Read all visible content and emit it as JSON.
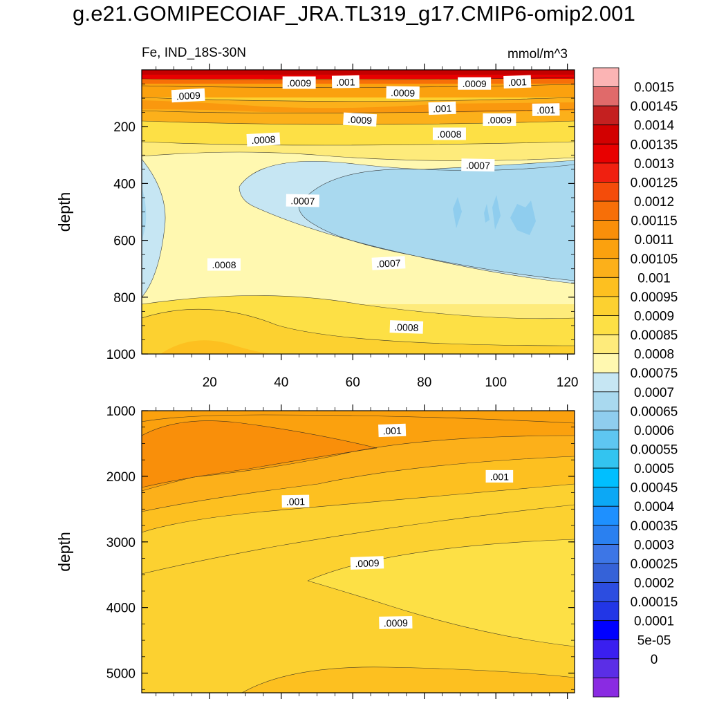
{
  "title": "g.e21.GOMIPECOIAF_JRA.TL319_g17.CMIP6-omip2.001",
  "left_string": "Fe, IND_18S-30N",
  "right_string": "mmol/m^3",
  "colors": {
    "levels": [
      "#8a2be2",
      "#5b2ee6",
      "#3a1ff0",
      "#0000ff",
      "#2236e6",
      "#2c4de0",
      "#3562d8",
      "#3d76e6",
      "#2a80f0",
      "#1e90ff",
      "#0ca8f5",
      "#00bfff",
      "#33c4f0",
      "#5ec6f1",
      "#8fcdee",
      "#a9d9ef",
      "#c6e6f3",
      "#fff8b0",
      "#feeb7b",
      "#fde045",
      "#fcd130",
      "#fdc020",
      "#fcb01a",
      "#fba10e",
      "#f98f0a",
      "#f76f08",
      "#f44c0a",
      "#f02010",
      "#e80000",
      "#d20000",
      "#c42020",
      "#e06a6a",
      "#fbb4b4"
    ]
  },
  "chart_data": [
    {
      "type": "contour",
      "panel": "upper",
      "xlim": [
        1,
        122
      ],
      "ylim": [
        1000,
        0
      ],
      "ylabel": "depth",
      "xticks": [
        20,
        40,
        60,
        80,
        100,
        120
      ],
      "xtick_labels": [
        "20",
        "40",
        "60",
        "80",
        "100",
        "120"
      ],
      "yticks": [
        200,
        400,
        600,
        800,
        1000
      ],
      "ytick_labels": [
        "200",
        "400",
        "600",
        "800",
        "1000"
      ],
      "contour_labels": [
        {
          "text": ".0009",
          "x": 45,
          "y": 45
        },
        {
          "text": ".001",
          "x": 58,
          "y": 42
        },
        {
          "text": ".0009",
          "x": 94,
          "y": 48
        },
        {
          "text": ".001",
          "x": 106,
          "y": 42
        },
        {
          "text": ".0009",
          "x": 14,
          "y": 90
        },
        {
          "text": ".0009",
          "x": 74,
          "y": 80
        },
        {
          "text": ".001",
          "x": 85,
          "y": 135
        },
        {
          "text": ".001",
          "x": 114,
          "y": 140
        },
        {
          "text": ".0009",
          "x": 62,
          "y": 175
        },
        {
          "text": ".0009",
          "x": 101,
          "y": 175
        },
        {
          "text": ".0008",
          "x": 87,
          "y": 225
        },
        {
          "text": ".0008",
          "x": 35,
          "y": 245
        },
        {
          "text": ".0007",
          "x": 95,
          "y": 335
        },
        {
          "text": ".0007",
          "x": 46,
          "y": 460
        },
        {
          "text": ".0008",
          "x": 24,
          "y": 685
        },
        {
          "text": ".0007",
          "x": 70,
          "y": 680
        },
        {
          "text": ".0008",
          "x": 75,
          "y": 905
        }
      ]
    },
    {
      "type": "contour",
      "panel": "lower",
      "xlim": [
        1,
        122
      ],
      "ylim": [
        5300,
        1000
      ],
      "ylabel": "depth",
      "yticks": [
        1000,
        2000,
        3000,
        4000,
        5000
      ],
      "ytick_labels": [
        "1000",
        "2000",
        "3000",
        "4000",
        "5000"
      ],
      "contour_labels": [
        {
          "text": ".001",
          "x": 71,
          "y": 1300
        },
        {
          "text": ".001",
          "x": 101,
          "y": 2000
        },
        {
          "text": ".001",
          "x": 44,
          "y": 2380
        },
        {
          "text": ".0009",
          "x": 64,
          "y": 3320
        },
        {
          "text": ".0009",
          "x": 72,
          "y": 4230
        }
      ]
    },
    {
      "type": "colorbar",
      "levels": [
        "0.0015",
        "0.00145",
        "0.0014",
        "0.00135",
        "0.0013",
        "0.00125",
        "0.0012",
        "0.00115",
        "0.0011",
        "0.00105",
        "0.001",
        "0.00095",
        "0.0009",
        "0.00085",
        "0.0008",
        "0.00075",
        "0.0007",
        "0.00065",
        "0.0006",
        "0.00055",
        "0.0005",
        "0.00045",
        "0.0004",
        "0.00035",
        "0.0003",
        "0.00025",
        "0.0002",
        "0.00015",
        "0.0001",
        "5e-05",
        "0"
      ]
    }
  ]
}
